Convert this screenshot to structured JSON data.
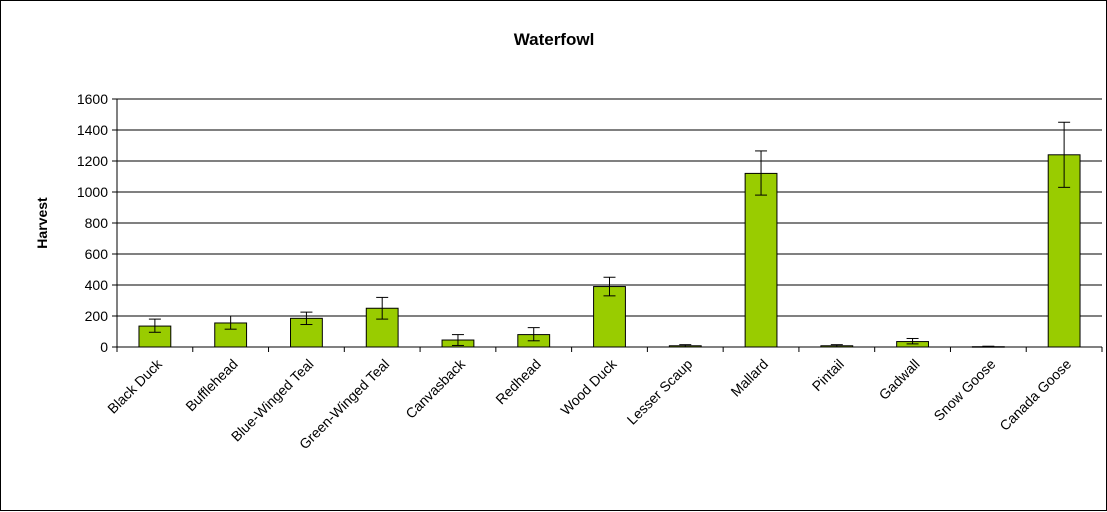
{
  "chart_data": {
    "type": "bar",
    "title": "Waterfowl",
    "xlabel": "",
    "ylabel": "Harvest",
    "ylim": [
      0,
      1600
    ],
    "yticks": [
      0,
      200,
      400,
      600,
      800,
      1000,
      1200,
      1400,
      1600
    ],
    "grid": true,
    "legend": "none",
    "bar_color": "#99CC00",
    "categories": [
      "Black Duck",
      "Bufflehead",
      "Blue-Winged  Teal",
      "Green-Winged Teal",
      "Canvasback",
      "Redhead",
      "Wood Duck",
      "Lesser Scaup",
      "Mallard",
      "Pintail",
      "Gadwall",
      "Snow Goose",
      "Canada Goose"
    ],
    "values": [
      135,
      155,
      185,
      250,
      45,
      80,
      390,
      8,
      1120,
      8,
      35,
      2,
      1240
    ],
    "error_low": [
      95,
      115,
      145,
      180,
      10,
      40,
      330,
      0,
      980,
      0,
      20,
      0,
      1030
    ],
    "error_high": [
      180,
      200,
      225,
      320,
      80,
      125,
      450,
      15,
      1265,
      15,
      55,
      5,
      1450
    ]
  }
}
